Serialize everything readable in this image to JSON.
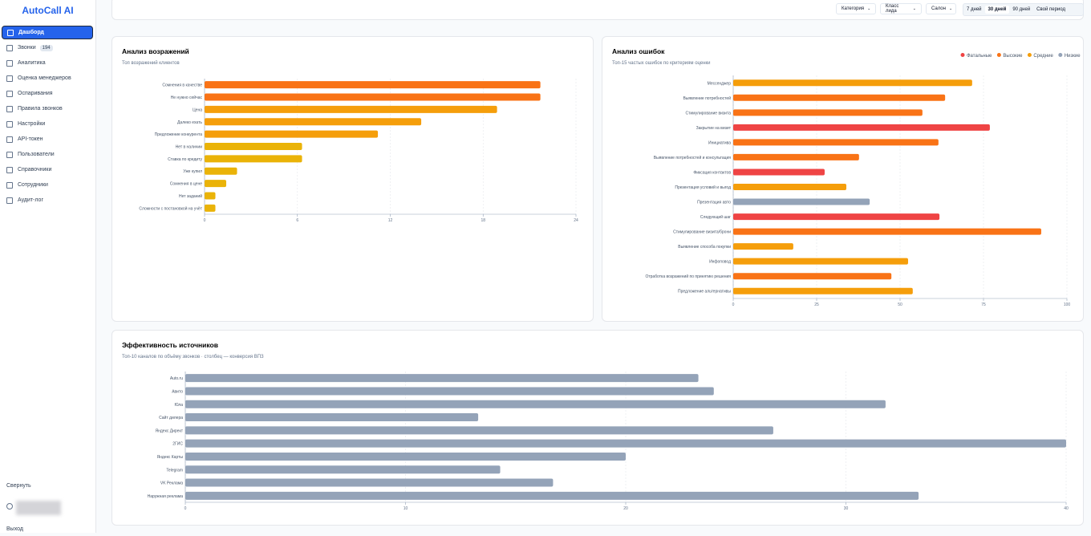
{
  "sidebar": {
    "logo": "AutoCall AI",
    "nav": [
      {
        "label": "Дашборд"
      },
      {
        "label": "Звонки",
        "badge": "194"
      },
      {
        "label": "Аналитика"
      },
      {
        "label": "Оценка менеджеров"
      },
      {
        "label": "Оспаривания"
      },
      {
        "label": "Правила звонков"
      },
      {
        "label": "Настройки"
      },
      {
        "label": "API-токен"
      },
      {
        "label": "Пользователи"
      },
      {
        "label": "Справочники"
      },
      {
        "label": "Сотрудники"
      },
      {
        "label": "Аудит-лог"
      }
    ],
    "collapse": "Свернуть",
    "logout": "Выход"
  },
  "toolbar": {
    "filters": [
      "Категория",
      "Класс лида",
      "Салон"
    ],
    "periods": [
      "7 дней",
      "30 дней",
      "90 дней",
      "Свой период"
    ]
  },
  "chart_data": [
    {
      "type": "hbar",
      "title": "Анализ возражений",
      "subtitle": "Топ возражений клиентов",
      "categories": [
        "Сомнения в качестве",
        "Не нужно сейчас",
        "Цена",
        "Далеко ехать",
        "Предложение конкурента",
        "Нет в наличии",
        "Ставка по кредиту",
        "Уже купил",
        "Сомнения в цене",
        "Нет заданий",
        "Сложности с постановкой на учёт"
      ],
      "values": [
        21.7,
        21.7,
        18.9,
        14,
        11.2,
        6.3,
        6.3,
        2.1,
        1.4,
        0.7,
        0.7
      ],
      "colors": [
        "#f97316",
        "#f97316",
        "#f59e0b",
        "#f59e0b",
        "#f59e0b",
        "#eab308",
        "#eab308",
        "#eab308",
        "#eab308",
        "#eab308",
        "#eab308"
      ],
      "xlim": [
        0,
        24
      ],
      "xticks": [
        0,
        6,
        12,
        18,
        24
      ],
      "grid": true
    },
    {
      "type": "hbar",
      "title": "Анализ ошибок",
      "subtitle": "Топ-15 частых ошибок по критериям оценки",
      "legend": [
        {
          "name": "Фатальные",
          "color": "#ef4444"
        },
        {
          "name": "Высокие",
          "color": "#f97316"
        },
        {
          "name": "Средние",
          "color": "#f59e0b"
        },
        {
          "name": "Низкие",
          "color": "#94a3b8"
        }
      ],
      "categories": [
        "Мессенджер",
        "Выявление потребностей",
        "Стимулирование визита",
        "Закрытие на визит",
        "Инициатива",
        "Выявление потребностей и консультация",
        "Фиксация контактов",
        "Презентация условий и выгод",
        "Презентация авто",
        "Следующий шаг",
        "Стимулирование визита/брони",
        "Выявление способа покупки",
        "Инфоповод",
        "Отработка возражений по принятию решения",
        "Предложение альтернативы"
      ],
      "values": [
        71.6,
        63.5,
        56.7,
        76.9,
        61.5,
        37.7,
        27.4,
        33.9,
        40.9,
        61.8,
        92.3,
        18,
        52.4,
        47.4,
        53.8
      ],
      "colors": [
        "#f59e0b",
        "#f97316",
        "#f97316",
        "#ef4444",
        "#f97316",
        "#f97316",
        "#ef4444",
        "#f59e0b",
        "#94a3b8",
        "#ef4444",
        "#f97316",
        "#f59e0b",
        "#f59e0b",
        "#f97316",
        "#f59e0b"
      ],
      "xlim": [
        0,
        100
      ],
      "xticks": [
        0,
        25,
        50,
        75,
        100
      ],
      "grid": true
    },
    {
      "type": "hbar",
      "title": "Эффективность источников",
      "subtitle": "Топ-10 каналов по объёму звонков · столбец — конверсия ВПЗ",
      "categories": [
        "Auto.ru",
        "Авито",
        "Юла",
        "Сайт дилера",
        "Яндекс Директ",
        "2ГИС",
        "Яндекс Карты",
        "Telegram",
        "VK Реклама",
        "Наружная реклама"
      ],
      "values": [
        23.3,
        24,
        31.8,
        13.3,
        26.7,
        40,
        20,
        14.3,
        16.7,
        33.3
      ],
      "color": "#94a3b8",
      "xlim": [
        0,
        40
      ],
      "xticks": [
        0,
        10,
        20,
        30,
        40
      ],
      "grid": true
    }
  ]
}
